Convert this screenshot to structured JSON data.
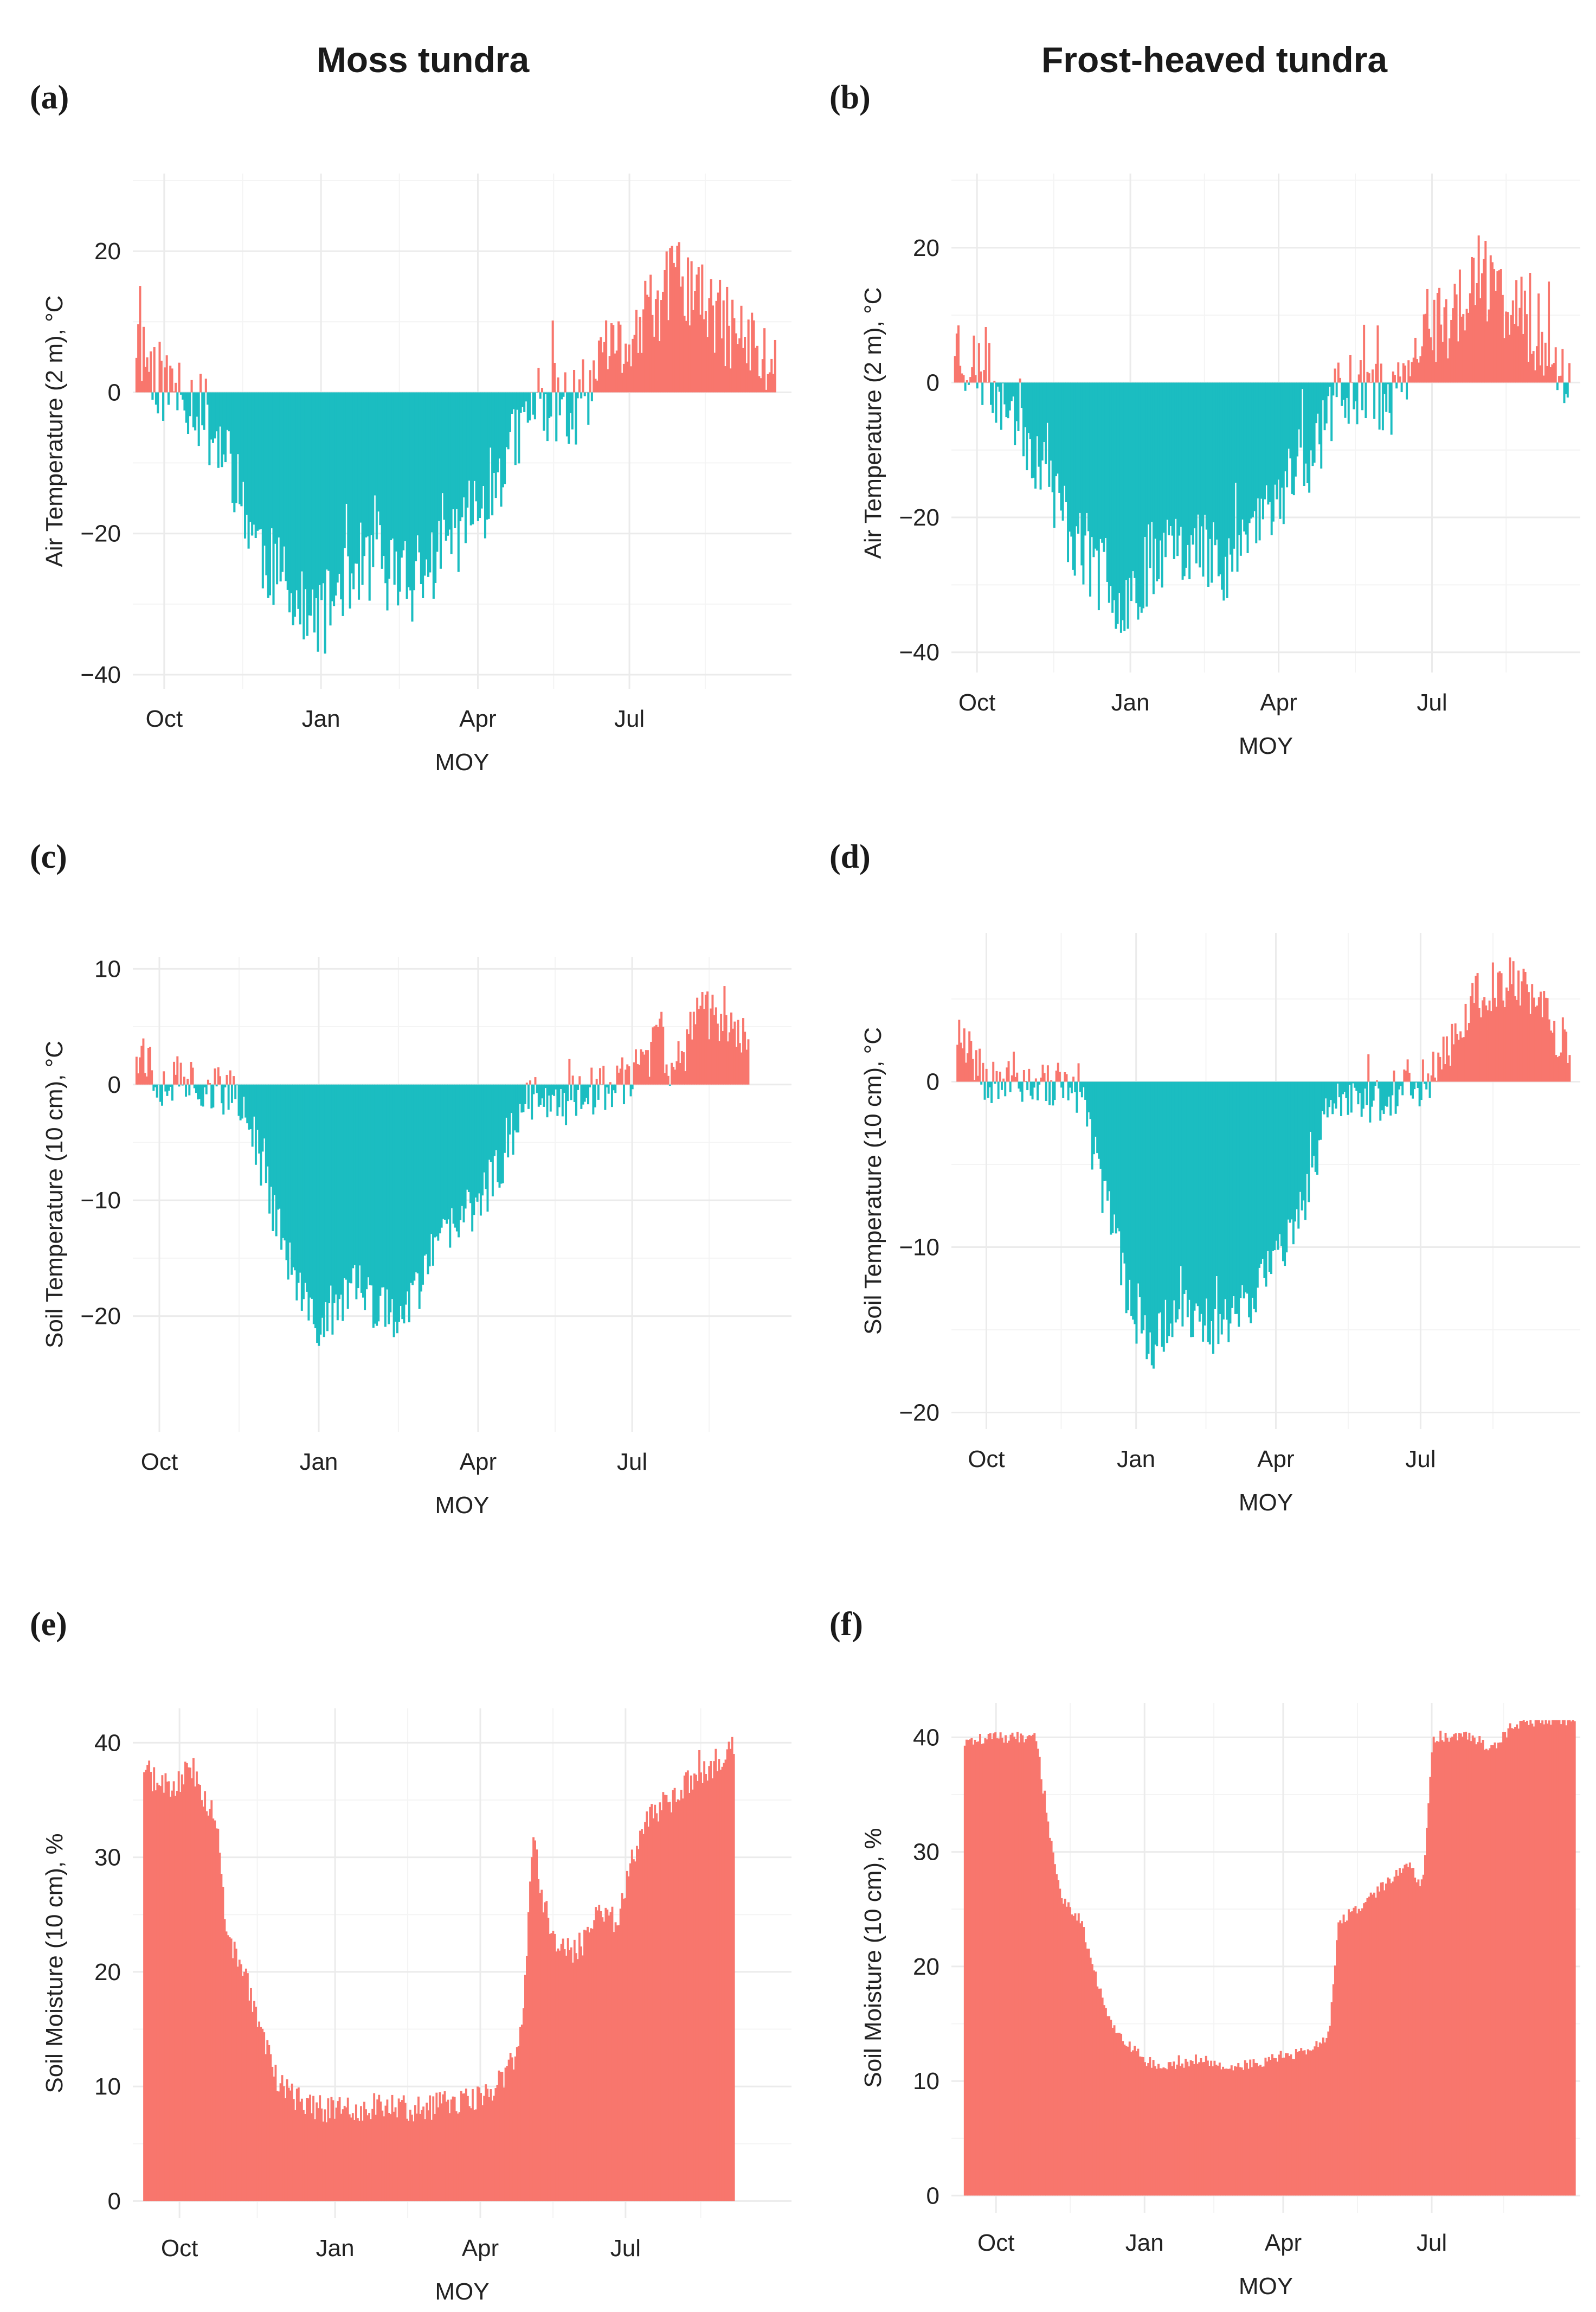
{
  "column_titles": [
    "Moss tundra",
    "Frost-heaved tundra"
  ],
  "colors": {
    "positive": "#F8766D",
    "negative": "#1BBDC1"
  },
  "chart_data": [
    {
      "id": "a",
      "panel_label": "(a)",
      "type": "area",
      "xlabel": "MOY",
      "ylabel": "Air Temperature (2 m), °C",
      "x_ticks": [
        [
          "Oct",
          9.2
        ],
        [
          "Jan",
          12.2
        ],
        [
          "Apr",
          15.2
        ],
        [
          "Jul",
          18.1
        ]
      ],
      "xlim": [
        8.6,
        21.2
      ],
      "ylim": [
        -42,
        31
      ],
      "y_ticks": [
        -40,
        -20,
        0,
        20
      ],
      "x_range": [
        8.65,
        20.9
      ],
      "profile_x": [
        8.65,
        8.9,
        9.2,
        9.6,
        10.0,
        10.5,
        11.0,
        11.5,
        12.0,
        12.3,
        12.6,
        13.0,
        13.5,
        14.0,
        14.5,
        15.0,
        15.5,
        16.0,
        16.3,
        16.8,
        17.2,
        17.6,
        17.9,
        18.2,
        18.6,
        19.0,
        19.4,
        19.8,
        20.2,
        20.6,
        20.9
      ],
      "profile_y": [
        8,
        4,
        1,
        0,
        -4,
        -12,
        -22,
        -28,
        -33,
        -31,
        -26,
        -24,
        -25,
        -28,
        -22,
        -18,
        -13,
        -6,
        -1,
        -2,
        -3,
        3,
        6,
        8,
        12,
        17,
        13,
        10,
        8,
        5,
        3
      ],
      "noise_amp": 6,
      "seed": 11,
      "clip": null
    },
    {
      "id": "b",
      "panel_label": "(b)",
      "type": "area",
      "xlabel": "MOY",
      "ylabel": "Air Temperature (2 m), °C",
      "x_ticks": [
        [
          "Oct",
          9.2
        ],
        [
          "Jan",
          12.2
        ],
        [
          "Apr",
          15.1
        ],
        [
          "Jul",
          18.1
        ]
      ],
      "xlim": [
        8.7,
        21.0
      ],
      "ylim": [
        -43,
        31
      ],
      "y_ticks": [
        -40,
        -20,
        0,
        20
      ],
      "x_range": [
        8.75,
        20.8
      ],
      "profile_x": [
        8.75,
        9.0,
        9.3,
        9.6,
        10.0,
        10.5,
        11.0,
        11.5,
        12.0,
        12.3,
        12.6,
        13.0,
        13.5,
        14.0,
        14.5,
        15.0,
        15.5,
        16.0,
        16.3,
        16.7,
        17.0,
        17.4,
        17.8,
        18.2,
        18.6,
        19.0,
        19.4,
        19.8,
        20.2,
        20.5,
        20.8
      ],
      "profile_y": [
        7,
        3,
        1,
        -1,
        -5,
        -13,
        -22,
        -28,
        -32,
        -30,
        -26,
        -23,
        -24,
        -27,
        -22,
        -18,
        -13,
        -6,
        -1,
        1,
        -1,
        -3,
        4,
        8,
        11,
        16,
        13,
        10,
        7,
        4,
        2
      ],
      "noise_amp": 6,
      "seed": 23,
      "clip": null
    },
    {
      "id": "c",
      "panel_label": "(c)",
      "type": "area",
      "xlabel": "MOY",
      "ylabel": "Soil Temperature (10 cm), °C",
      "x_ticks": [
        [
          "Oct",
          9.2
        ],
        [
          "Jan",
          12.2
        ],
        [
          "Apr",
          15.2
        ],
        [
          "Jul",
          18.1
        ]
      ],
      "xlim": [
        8.7,
        21.1
      ],
      "ylim": [
        -30,
        11
      ],
      "y_ticks": [
        -20,
        -10,
        0,
        10
      ],
      "x_range": [
        8.75,
        20.3
      ],
      "profile_x": [
        8.75,
        8.9,
        9.1,
        9.4,
        9.7,
        10.0,
        10.3,
        10.7,
        11.0,
        11.4,
        11.8,
        12.1,
        12.4,
        12.8,
        13.2,
        13.6,
        14.0,
        14.4,
        14.8,
        15.2,
        15.6,
        16.0,
        16.3,
        16.6,
        16.9,
        17.2,
        17.5,
        17.8,
        18.1,
        18.3,
        18.6,
        18.9,
        19.3,
        19.7,
        20.0,
        20.3
      ],
      "profile_y": [
        3.5,
        3,
        0.4,
        0.2,
        0.6,
        0,
        -0.3,
        -1.5,
        -5,
        -12,
        -18,
        -21,
        -20,
        -17,
        -19,
        -20,
        -18,
        -14,
        -12,
        -10,
        -7,
        -2,
        -0.5,
        -0.8,
        -1.5,
        -0.8,
        -0.3,
        -0.1,
        0.5,
        2,
        4,
        0,
        6,
        6,
        5,
        3
      ],
      "noise_amp": 2.2,
      "seed": 37,
      "clip": null
    },
    {
      "id": "d",
      "panel_label": "(d)",
      "type": "area",
      "xlabel": "MOY",
      "ylabel": "Soil Temperature (10 cm), °C",
      "x_ticks": [
        [
          "Oct",
          9.2
        ],
        [
          "Jan",
          12.2
        ],
        [
          "Apr",
          15.0
        ],
        [
          "Jul",
          17.9
        ]
      ],
      "xlim": [
        8.5,
        21.1
      ],
      "ylim": [
        -21,
        9
      ],
      "y_ticks": [
        -20,
        -10,
        0
      ],
      "x_range": [
        8.6,
        20.9
      ],
      "profile_x": [
        8.6,
        8.8,
        9.1,
        9.4,
        9.8,
        10.2,
        10.6,
        11.0,
        11.4,
        11.8,
        12.1,
        12.5,
        12.9,
        13.3,
        13.7,
        14.1,
        14.5,
        14.9,
        15.3,
        15.6,
        16.0,
        16.4,
        16.8,
        17.2,
        17.6,
        17.9,
        18.2,
        18.6,
        19.0,
        19.4,
        19.8,
        20.2,
        20.6,
        20.9
      ],
      "profile_y": [
        3.5,
        2.5,
        0.5,
        0.4,
        0.2,
        -0.1,
        -0.2,
        -1,
        -5,
        -10,
        -14,
        -16,
        -14,
        -14,
        -15,
        -14,
        -13,
        -11,
        -9,
        -7,
        -2,
        -0.8,
        -1,
        -0.6,
        -0.2,
        0,
        1,
        3,
        5,
        6,
        6,
        5,
        3,
        2
      ],
      "noise_amp": 1.6,
      "seed": 53,
      "clip": null
    },
    {
      "id": "e",
      "panel_label": "(e)",
      "type": "area",
      "xlabel": "MOY",
      "ylabel": "Soil Moisture (10 cm), %",
      "x_ticks": [
        [
          "Oct",
          9.2
        ],
        [
          "Jan",
          12.2
        ],
        [
          "Apr",
          15.0
        ],
        [
          "Jul",
          17.8
        ]
      ],
      "xlim": [
        8.3,
        21.0
      ],
      "ylim": [
        -1.5,
        43
      ],
      "y_ticks": [
        0,
        10,
        20,
        30,
        40
      ],
      "x_range": [
        8.5,
        19.9
      ],
      "profile_x": [
        8.5,
        8.8,
        9.1,
        9.4,
        9.6,
        9.9,
        10.1,
        10.4,
        10.7,
        11.0,
        11.4,
        12.0,
        12.6,
        13.2,
        13.8,
        14.4,
        14.9,
        15.3,
        15.6,
        15.8,
        16.0,
        16.2,
        16.5,
        16.9,
        17.3,
        17.6,
        17.9,
        18.3,
        18.7,
        19.1,
        19.5,
        19.9
      ],
      "profile_y": [
        38,
        36,
        36,
        38,
        36,
        33,
        23,
        20,
        16,
        11,
        9,
        8,
        8,
        8.5,
        8,
        8.5,
        9,
        10,
        12,
        15,
        32,
        26,
        22,
        22,
        26,
        24,
        30,
        34,
        35,
        37,
        38,
        40
      ],
      "noise_amp": 1.2,
      "seed": 71,
      "clip": 41
    },
    {
      "id": "f",
      "panel_label": "(f)",
      "type": "area",
      "xlabel": "MOY",
      "ylabel": "Soil Moisture (10 cm), %",
      "x_ticks": [
        [
          "Oct",
          9.2
        ],
        [
          "Jan",
          12.2
        ],
        [
          "Apr",
          15.0
        ],
        [
          "Jul",
          18.0
        ]
      ],
      "xlim": [
        8.3,
        21.0
      ],
      "ylim": [
        -1.5,
        43
      ],
      "y_ticks": [
        0,
        10,
        20,
        30,
        40
      ],
      "x_range": [
        8.55,
        20.9
      ],
      "profile_x": [
        8.55,
        9.0,
        9.5,
        10.0,
        10.2,
        10.5,
        10.9,
        11.2,
        11.5,
        11.9,
        12.4,
        12.9,
        13.4,
        13.9,
        14.4,
        14.9,
        15.3,
        15.6,
        15.9,
        16.1,
        16.5,
        17.0,
        17.5,
        17.8,
        18.0,
        18.4,
        18.8,
        19.2,
        19.6,
        20.1,
        20.6,
        20.9
      ],
      "profile_y": [
        39.5,
        40,
        40,
        40,
        33,
        26,
        24,
        19,
        15,
        13,
        11,
        11.5,
        12,
        11,
        11.5,
        12,
        12.5,
        13,
        14,
        24,
        25,
        27,
        29,
        27,
        40,
        40,
        40,
        39,
        41,
        41.5,
        41.5,
        41.5
      ],
      "noise_amp": 0.5,
      "seed": 89,
      "clip": 41.5
    }
  ]
}
